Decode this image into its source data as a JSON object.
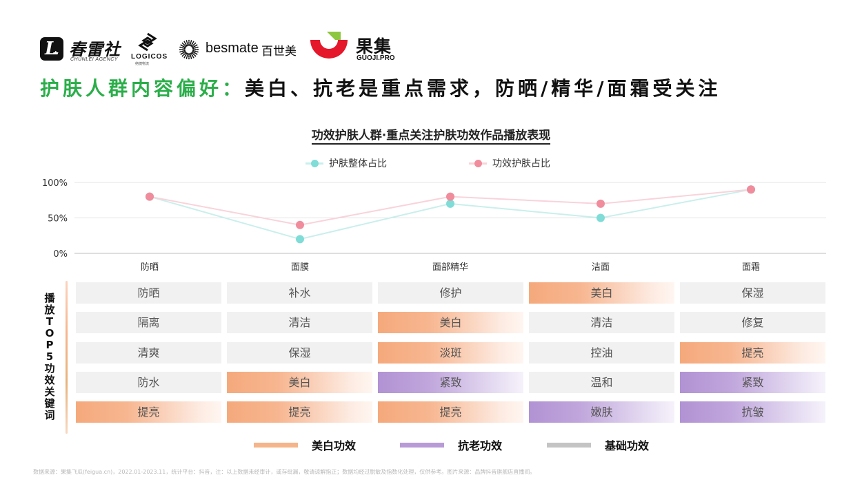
{
  "logos": {
    "chunlei": {
      "icon_letter": "L",
      "name": "春雷社",
      "sub": "CHUNLEI AGENCY"
    },
    "logicos": {
      "name": "LOGICOS",
      "sub": "络捷物流"
    },
    "besmate": {
      "name": "besmate",
      "cn": "百世美"
    },
    "guoji": {
      "name": "果集",
      "sub": "GUOJI.PRO",
      "colors": {
        "red": "#e5172b",
        "green": "#8dc63f"
      }
    }
  },
  "headline": {
    "lead": "护肤人群内容偏好：",
    "rest": "美白、抗老是重点需求，防晒/精华/面霜受关注"
  },
  "chart_data": {
    "type": "line",
    "title": "功效护肤人群·重点关注护肤功效作品播放表现",
    "categories": [
      "防晒",
      "面膜",
      "面部精华",
      "洁面",
      "面霜"
    ],
    "series": [
      {
        "name": "护肤整体占比",
        "color": "#7fdcd6",
        "values": [
          80,
          20,
          70,
          50,
          90
        ]
      },
      {
        "name": "功效护肤占比",
        "color": "#f08c9c",
        "values": [
          80,
          40,
          80,
          70,
          90
        ]
      }
    ],
    "y_ticks": [
      "0%",
      "50%",
      "100%"
    ],
    "ylim": [
      0,
      100
    ],
    "legend_position": "top-center",
    "grid": true
  },
  "keywords": {
    "side_label": "播放TOP5功效关键词",
    "columns": [
      {
        "category": "防晒",
        "items": [
          {
            "text": "防晒",
            "type": "basic"
          },
          {
            "text": "隔离",
            "type": "basic"
          },
          {
            "text": "清爽",
            "type": "basic"
          },
          {
            "text": "防水",
            "type": "basic"
          },
          {
            "text": "提亮",
            "type": "whitening"
          }
        ]
      },
      {
        "category": "面膜",
        "items": [
          {
            "text": "补水",
            "type": "basic"
          },
          {
            "text": "清洁",
            "type": "basic"
          },
          {
            "text": "保湿",
            "type": "basic"
          },
          {
            "text": "美白",
            "type": "whitening"
          },
          {
            "text": "提亮",
            "type": "whitening"
          }
        ]
      },
      {
        "category": "面部精华",
        "items": [
          {
            "text": "修护",
            "type": "basic"
          },
          {
            "text": "美白",
            "type": "whitening"
          },
          {
            "text": "淡斑",
            "type": "whitening"
          },
          {
            "text": "紧致",
            "type": "antiaging"
          },
          {
            "text": "提亮",
            "type": "whitening"
          }
        ]
      },
      {
        "category": "洁面",
        "items": [
          {
            "text": "美白",
            "type": "whitening"
          },
          {
            "text": "清洁",
            "type": "basic"
          },
          {
            "text": "控油",
            "type": "basic"
          },
          {
            "text": "温和",
            "type": "basic"
          },
          {
            "text": "嫩肤",
            "type": "antiaging"
          }
        ]
      },
      {
        "category": "面霜",
        "items": [
          {
            "text": "保湿",
            "type": "basic"
          },
          {
            "text": "修复",
            "type": "basic"
          },
          {
            "text": "提亮",
            "type": "whitening"
          },
          {
            "text": "紧致",
            "type": "antiaging"
          },
          {
            "text": "抗皱",
            "type": "antiaging"
          }
        ]
      }
    ]
  },
  "legend_bottom": [
    {
      "label": "美白功效",
      "color": "#f5b48a"
    },
    {
      "label": "抗老功效",
      "color": "#b89bd6"
    },
    {
      "label": "基础功效",
      "color": "#c4c4c4"
    }
  ],
  "footnote": "数据来源：果集飞瓜(feigua.cn)，2022.01-2023.11，统计平台：抖音，注：以上数据未经审计，或存纰漏，敬请谅解指正；数据均经过脱敏及指数化处理，仅供参考。图片来源：品牌抖音旗舰店直播间。"
}
